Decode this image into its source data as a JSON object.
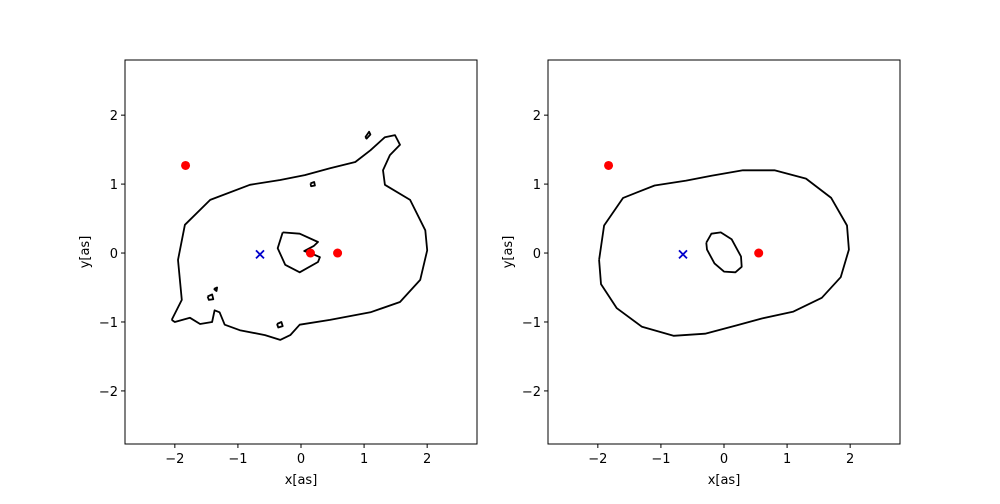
{
  "chart_data": [
    {
      "type": "scatter",
      "xlabel": "x[as]",
      "ylabel": "y[as]",
      "xlim": [
        -2.79,
        2.79
      ],
      "ylim": [
        -2.77,
        2.8
      ],
      "xticks": [
        {
          "value": -2,
          "label": "−2"
        },
        {
          "value": -1,
          "label": "−1"
        },
        0,
        1,
        2
      ],
      "yticks": [
        {
          "value": -2,
          "label": "−2"
        },
        {
          "value": -1,
          "label": "−1"
        },
        0,
        1,
        2
      ],
      "contours": [
        {
          "color": "#000000",
          "x": [
            -2.05,
            -1.89,
            -1.95,
            -1.84,
            -1.44,
            -0.81,
            -0.33,
            0.06,
            0.46,
            0.86,
            1.1,
            1.33,
            1.49,
            1.57,
            1.41,
            1.3,
            1.33,
            1.73,
            1.97,
            2.0,
            1.89,
            1.57,
            1.1,
            0.46,
            -0.02,
            -0.17,
            -0.33,
            -0.57,
            -0.97,
            -1.21,
            -1.29,
            -1.37,
            -1.41,
            -1.6,
            -1.76,
            -2.0,
            -2.05
          ],
          "y": [
            -0.97,
            -0.68,
            -0.1,
            0.41,
            0.77,
            0.99,
            1.06,
            1.13,
            1.23,
            1.32,
            1.49,
            1.68,
            1.71,
            1.57,
            1.42,
            1.2,
            0.99,
            0.77,
            0.33,
            0.04,
            -0.39,
            -0.71,
            -0.86,
            -0.97,
            -1.04,
            -1.19,
            -1.26,
            -1.19,
            -1.12,
            -1.04,
            -0.86,
            -0.83,
            -1.0,
            -1.03,
            -0.94,
            -1.0,
            -0.97
          ]
        },
        {
          "color": "#000000",
          "x": [
            -0.29,
            -0.02,
            0.27,
            0.2,
            0.05,
            0.2,
            0.3,
            0.27,
            -0.02,
            -0.25,
            -0.37,
            -0.29
          ],
          "y": [
            0.3,
            0.28,
            0.16,
            0.1,
            0.03,
            -0.02,
            -0.06,
            -0.13,
            -0.28,
            -0.17,
            0.07,
            0.3
          ]
        },
        {
          "color": "#000000",
          "x": [
            1.02,
            1.08,
            1.1,
            1.04,
            1.02
          ],
          "y": [
            1.68,
            1.76,
            1.72,
            1.66,
            1.68
          ]
        },
        {
          "color": "#000000",
          "x": [
            0.15,
            0.21,
            0.22,
            0.16,
            0.15
          ],
          "y": [
            1.01,
            1.03,
            0.98,
            0.97,
            1.01
          ]
        },
        {
          "color": "#000000",
          "x": [
            -1.48,
            -1.41,
            -1.39,
            -1.46,
            -1.48
          ],
          "y": [
            -0.63,
            -0.6,
            -0.67,
            -0.68,
            -0.63
          ]
        },
        {
          "color": "#000000",
          "x": [
            -0.38,
            -0.31,
            -0.29,
            -0.36,
            -0.38
          ],
          "y": [
            -1.03,
            -1.0,
            -1.06,
            -1.08,
            -1.03
          ]
        },
        {
          "color": "#000000",
          "x": [
            -1.38,
            -1.33,
            -1.34,
            -1.38
          ],
          "y": [
            -0.52,
            -0.5,
            -0.55,
            -0.52
          ]
        }
      ],
      "series": [
        {
          "color": "#ff0000",
          "marker": "o",
          "x": [
            -1.83,
            0.15,
            0.58
          ],
          "y": [
            1.27,
            0.0,
            0.0
          ]
        },
        {
          "color": "#0000cc",
          "marker": "x",
          "x": [
            -0.65
          ],
          "y": [
            -0.02
          ]
        }
      ]
    },
    {
      "type": "scatter",
      "xlabel": "x[as]",
      "ylabel": "y[as]",
      "xlim": [
        -2.79,
        2.79
      ],
      "ylim": [
        -2.77,
        2.8
      ],
      "xticks": [
        {
          "value": -2,
          "label": "−2"
        },
        {
          "value": -1,
          "label": "−1"
        },
        0,
        1,
        2
      ],
      "yticks": [
        {
          "value": -2,
          "label": "−2"
        },
        {
          "value": -1,
          "label": "−1"
        },
        0,
        1,
        2
      ],
      "contours": [
        {
          "color": "#000000",
          "x": [
            -1.98,
            -1.9,
            -1.6,
            -1.1,
            -0.6,
            -0.2,
            0.3,
            0.8,
            1.3,
            1.7,
            1.95,
            1.98,
            1.85,
            1.55,
            1.1,
            0.6,
            0.2,
            -0.3,
            -0.8,
            -1.3,
            -1.7,
            -1.95,
            -1.98
          ],
          "y": [
            -0.1,
            0.4,
            0.8,
            0.98,
            1.05,
            1.12,
            1.2,
            1.2,
            1.08,
            0.8,
            0.4,
            0.05,
            -0.35,
            -0.65,
            -0.85,
            -0.95,
            -1.05,
            -1.17,
            -1.2,
            -1.07,
            -0.8,
            -0.45,
            -0.1
          ]
        },
        {
          "color": "#000000",
          "x": [
            -0.28,
            -0.2,
            -0.05,
            0.12,
            0.27,
            0.28,
            0.18,
            0.0,
            -0.15,
            -0.27,
            -0.28
          ],
          "y": [
            0.15,
            0.28,
            0.3,
            0.2,
            -0.05,
            -0.2,
            -0.28,
            -0.27,
            -0.15,
            0.05,
            0.15
          ]
        }
      ],
      "series": [
        {
          "color": "#ff0000",
          "marker": "o",
          "x": [
            -1.83,
            0.55
          ],
          "y": [
            1.27,
            0.0
          ]
        },
        {
          "color": "#0000cc",
          "marker": "x",
          "x": [
            -0.65
          ],
          "y": [
            -0.02
          ]
        }
      ]
    }
  ]
}
